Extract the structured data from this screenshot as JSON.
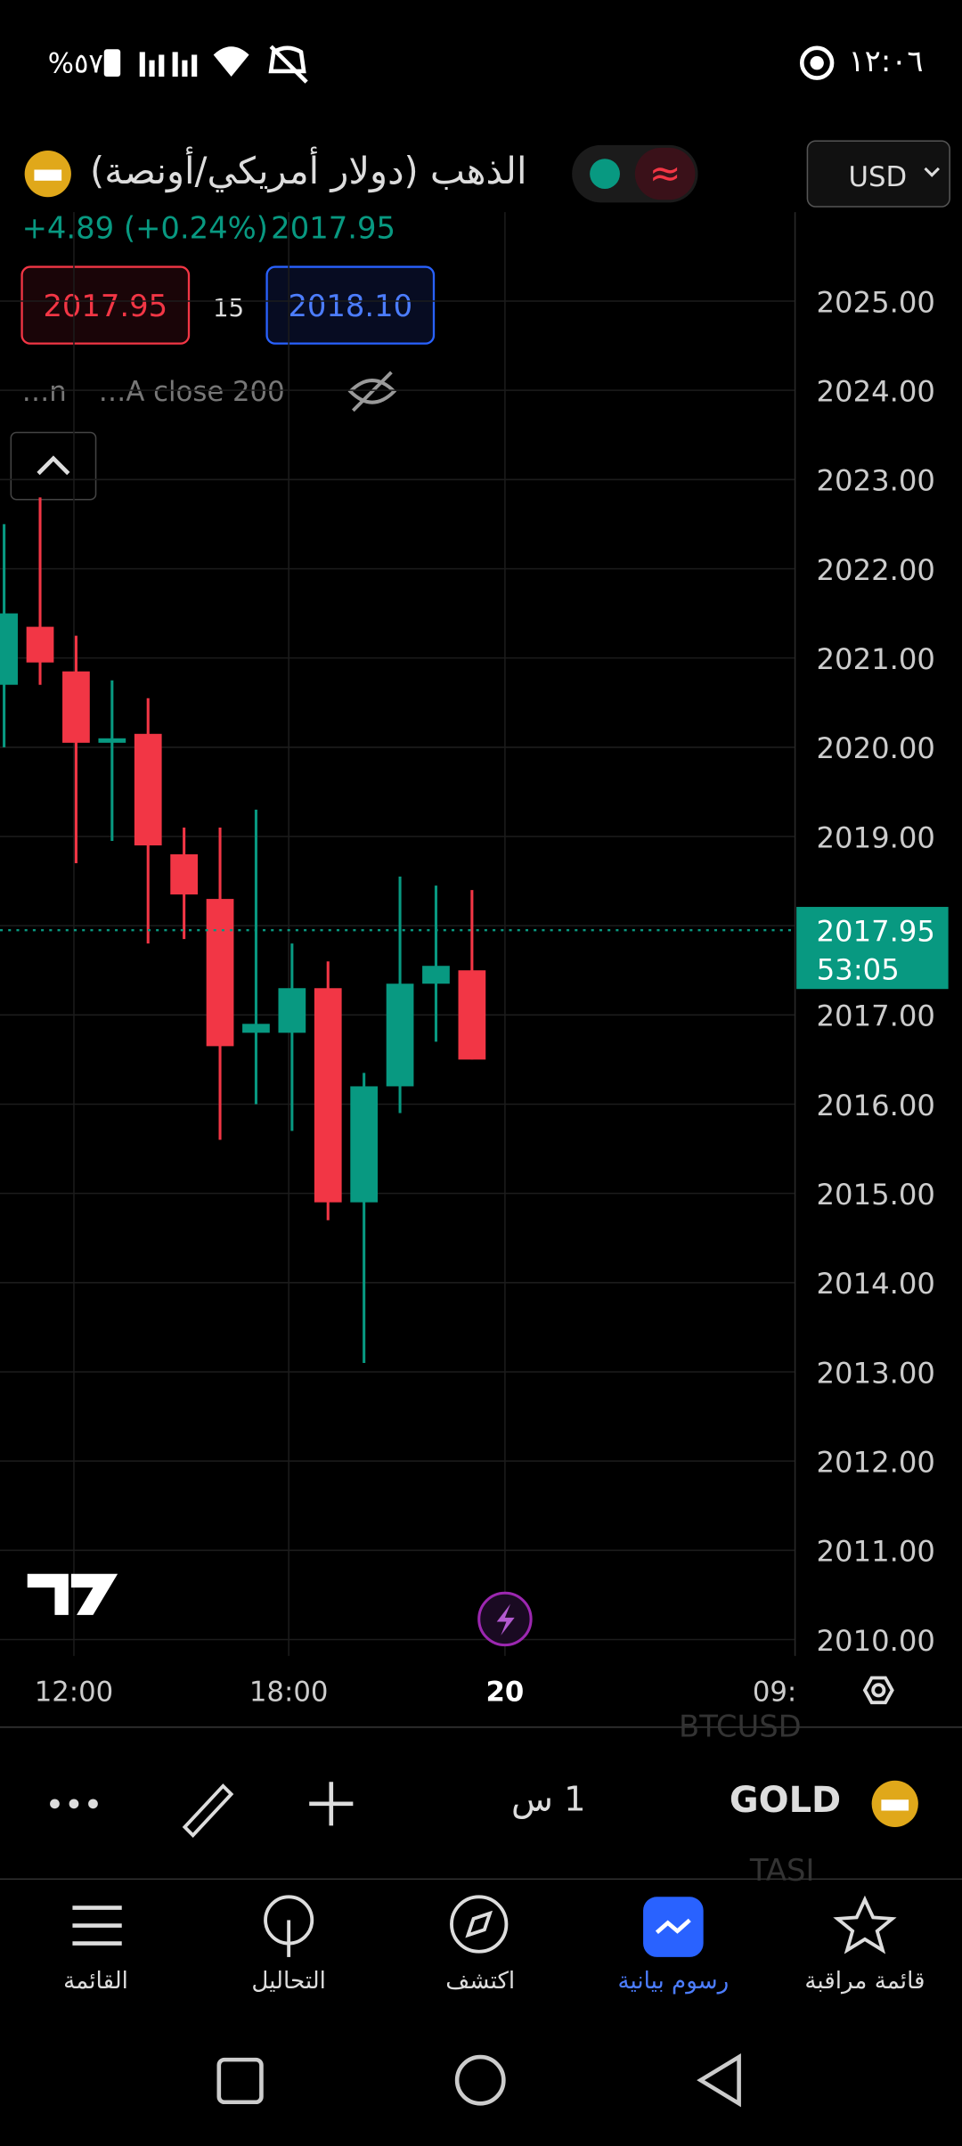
{
  "status_bar": {
    "battery": "%٥٧",
    "time": "١٢:٠٦"
  },
  "header": {
    "symbol_title": "الذهب (دولار أمريكي/أونصة)",
    "currency": "USD",
    "change": "+4.89 (+0.24%)",
    "last": "2017.95",
    "bid": "2017.95",
    "spread": "15",
    "ask": "2018.10",
    "indicator_short": "…n",
    "indicator": "…A close 200"
  },
  "chart": {
    "price_ticks": [
      {
        "value": 2025,
        "label": "2025.00"
      },
      {
        "value": 2024,
        "label": "2024.00"
      },
      {
        "value": 2023,
        "label": "2023.00"
      },
      {
        "value": 2022,
        "label": "2022.00"
      },
      {
        "value": 2021,
        "label": "2021.00"
      },
      {
        "value": 2020,
        "label": "2020.00"
      },
      {
        "value": 2019,
        "label": "2019.00"
      },
      {
        "value": 2018,
        "label": "2018.00"
      },
      {
        "value": 2017,
        "label": "2017.00"
      },
      {
        "value": 2016,
        "label": "2016.00"
      },
      {
        "value": 2015,
        "label": "2015.00"
      },
      {
        "value": 2014,
        "label": "2014.00"
      },
      {
        "value": 2013,
        "label": "2013.00"
      },
      {
        "value": 2012,
        "label": "2012.00"
      },
      {
        "value": 2011,
        "label": "2011.00"
      },
      {
        "value": 2010,
        "label": "2010.00"
      }
    ],
    "candles": [
      {
        "open": 2020.7,
        "high": 2022.5,
        "low": 2020.0,
        "close": 2021.5
      },
      {
        "open": 2021.35,
        "high": 2022.8,
        "low": 2020.7,
        "close": 2020.95
      },
      {
        "open": 2020.85,
        "high": 2021.25,
        "low": 2018.7,
        "close": 2020.05
      },
      {
        "open": 2020.05,
        "high": 2020.75,
        "low": 2018.95,
        "close": 2020.1
      },
      {
        "open": 2020.15,
        "high": 2020.55,
        "low": 2017.8,
        "close": 2018.9
      },
      {
        "open": 2018.8,
        "high": 2019.1,
        "low": 2017.85,
        "close": 2018.35
      },
      {
        "open": 2018.3,
        "high": 2019.1,
        "low": 2015.6,
        "close": 2016.65
      },
      {
        "open": 2016.8,
        "high": 2019.3,
        "low": 2016.0,
        "close": 2016.9
      },
      {
        "open": 2016.8,
        "high": 2017.8,
        "low": 2015.7,
        "close": 2017.3
      },
      {
        "open": 2017.3,
        "high": 2017.6,
        "low": 2014.7,
        "close": 2014.9
      },
      {
        "open": 2014.9,
        "high": 2016.35,
        "low": 2013.1,
        "close": 2016.2
      },
      {
        "open": 2016.2,
        "high": 2018.55,
        "low": 2015.9,
        "close": 2017.35
      },
      {
        "open": 2017.35,
        "high": 2018.45,
        "low": 2016.7,
        "close": 2017.55
      },
      {
        "open": 2017.5,
        "high": 2018.4,
        "low": 2016.5,
        "close": 2016.5
      }
    ],
    "last_price": 2017.95,
    "last_price_label": "2017.95",
    "countdown": "53:05",
    "time_labels": [
      "12:00",
      "18:00",
      "20",
      "09:"
    ]
  },
  "toolbar": {
    "interval": "1 س",
    "symbol": "GOLD",
    "ghost_above": "BTCUSD",
    "ghost_below": "TASI"
  },
  "nav": [
    {
      "label": "القائمة"
    },
    {
      "label": "التحاليل"
    },
    {
      "label": "اكتشف"
    },
    {
      "label": "رسوم بيانية"
    },
    {
      "label": "قائمة مراقبة"
    }
  ]
}
